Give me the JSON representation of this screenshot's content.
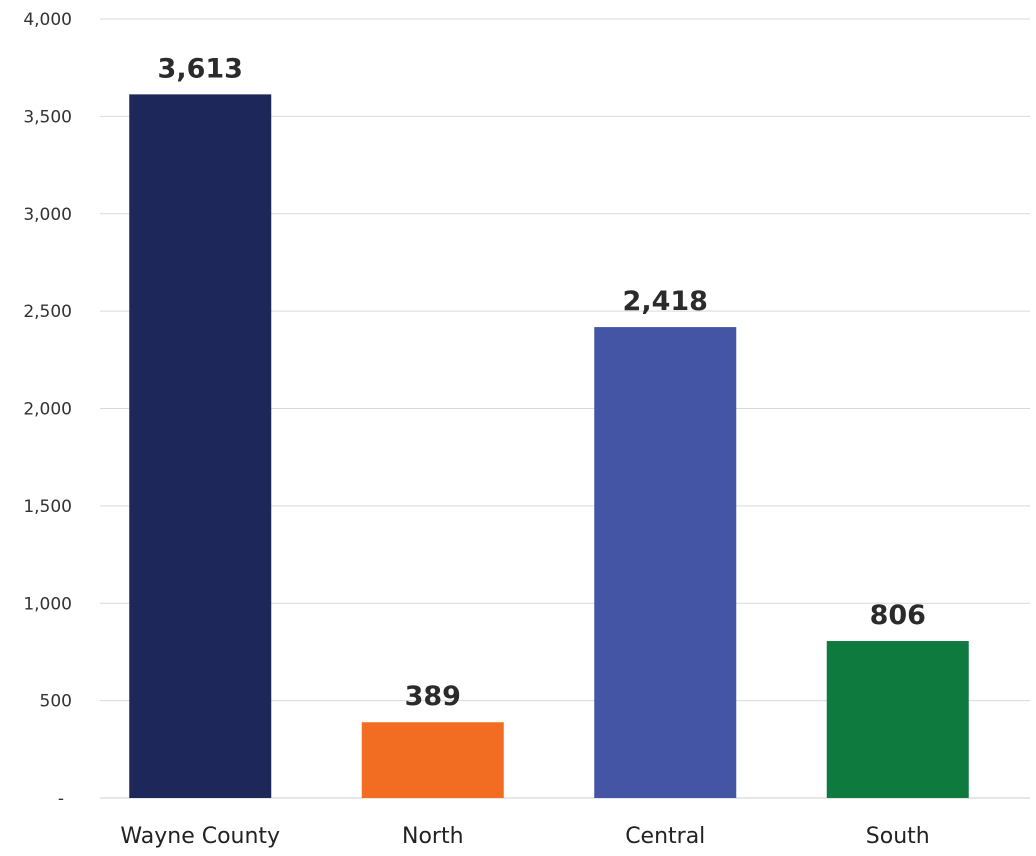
{
  "chart_data": {
    "type": "bar",
    "categories": [
      "Wayne County",
      "North",
      "Central",
      "South"
    ],
    "values": [
      3613,
      389,
      2418,
      806
    ],
    "value_labels": [
      "3,613",
      "389",
      "2,418",
      "806"
    ],
    "colors": [
      "#1e2759",
      "#f26c22",
      "#4455a6",
      "#0f7a3e"
    ],
    "title": "",
    "xlabel": "",
    "ylabel": "",
    "ylim": [
      0,
      4000
    ],
    "yticks": [
      {
        "value": 0,
        "label": "-"
      },
      {
        "value": 500,
        "label": "500"
      },
      {
        "value": 1000,
        "label": "1,000"
      },
      {
        "value": 1500,
        "label": "1,500"
      },
      {
        "value": 2000,
        "label": "2,000"
      },
      {
        "value": 2500,
        "label": "2,500"
      },
      {
        "value": 3000,
        "label": "3,000"
      },
      {
        "value": 3500,
        "label": "3,500"
      },
      {
        "value": 4000,
        "label": "4,000"
      }
    ],
    "grid": true,
    "legend": "none"
  }
}
